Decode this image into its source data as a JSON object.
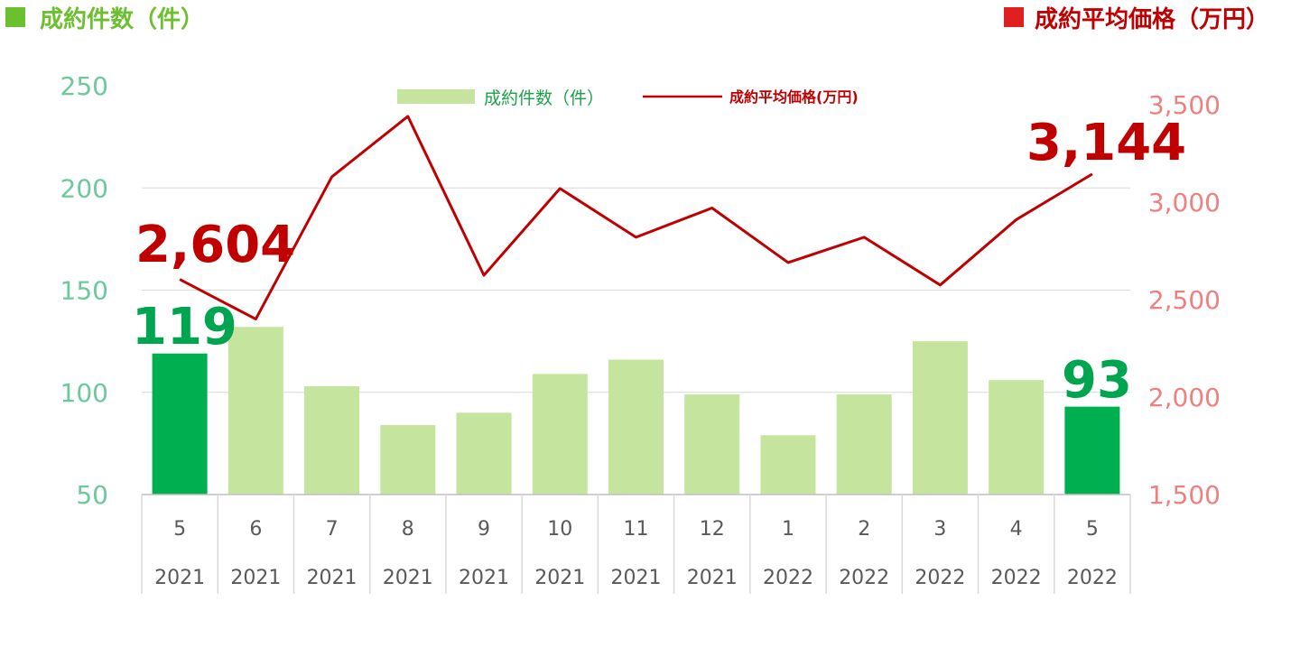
{
  "header": {
    "left_title": "成約件数（件）",
    "left_color": "#6cbf2e",
    "right_title": "成約平均価格（万円）",
    "right_color": "#c00000"
  },
  "legend": {
    "bar_label": "成約件数（件）",
    "line_label": "成約平均価格(万円)"
  },
  "annotations": {
    "first_count": "119",
    "last_count": "93",
    "first_price": "2,604",
    "last_price": "3,144"
  },
  "chart_data": {
    "type": "bar+line",
    "categories": [
      {
        "month": "5",
        "year": "2021"
      },
      {
        "month": "6",
        "year": "2021"
      },
      {
        "month": "7",
        "year": "2021"
      },
      {
        "month": "8",
        "year": "2021"
      },
      {
        "month": "9",
        "year": "2021"
      },
      {
        "month": "10",
        "year": "2021"
      },
      {
        "month": "11",
        "year": "2021"
      },
      {
        "month": "12",
        "year": "2021"
      },
      {
        "month": "1",
        "year": "2022"
      },
      {
        "month": "2",
        "year": "2022"
      },
      {
        "month": "3",
        "year": "2022"
      },
      {
        "month": "4",
        "year": "2022"
      },
      {
        "month": "5",
        "year": "2022"
      }
    ],
    "series": [
      {
        "name": "成約件数（件）",
        "axis": "left",
        "type": "bar",
        "values": [
          119,
          132,
          103,
          84,
          90,
          109,
          116,
          99,
          79,
          99,
          125,
          106,
          93
        ],
        "color": "#c5e59f",
        "highlight_color": "#00b050",
        "highlight_indices": [
          0,
          12
        ]
      },
      {
        "name": "成約平均価格(万円)",
        "axis": "right",
        "type": "line",
        "values": [
          2604,
          2400,
          3130,
          3440,
          2625,
          3070,
          2820,
          2970,
          2690,
          2820,
          2575,
          2910,
          3144
        ],
        "color": "#c00000"
      }
    ],
    "left_axis": {
      "min": 50,
      "max": 250,
      "ticks": [
        "250",
        "200",
        "150",
        "100",
        "50"
      ],
      "tick_values": [
        250,
        200,
        150,
        100,
        50
      ]
    },
    "right_axis": {
      "min": 1500,
      "max": 3500,
      "ticks": [
        "3,500",
        "3,000",
        "2,500",
        "2,000",
        "1,500"
      ],
      "tick_values": [
        3500,
        3000,
        2500,
        2000,
        1500
      ]
    },
    "grid": true,
    "legend_position": "top"
  }
}
